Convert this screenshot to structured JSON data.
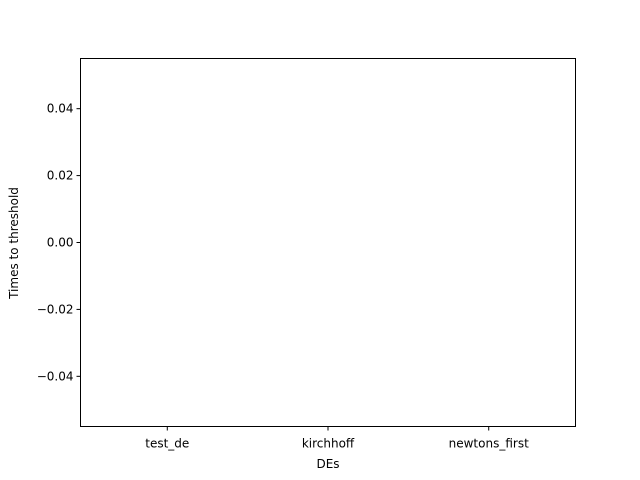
{
  "chart_data": {
    "type": "bar",
    "categories": [
      "test_de",
      "kirchhoff",
      "newtons_first"
    ],
    "values": [
      0,
      0,
      0
    ],
    "title": "",
    "xlabel": "DEs",
    "ylabel": "Times to threshold",
    "ylim": [
      -0.055,
      0.055
    ],
    "yticks": [
      0.04,
      0.02,
      0.0,
      -0.02,
      -0.04
    ],
    "ytick_labels": [
      "0.04",
      "0.02",
      "0.00",
      "−0.02",
      "−0.04"
    ],
    "grid": false
  }
}
